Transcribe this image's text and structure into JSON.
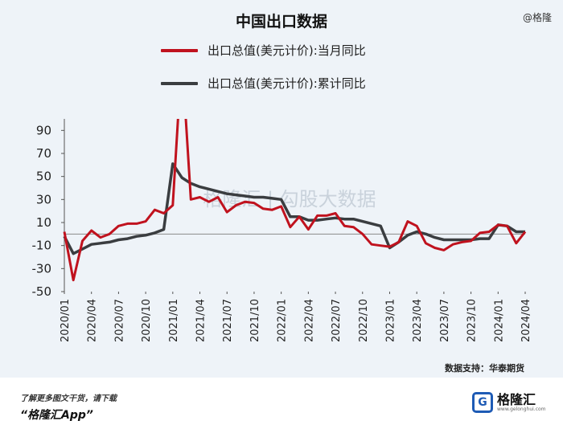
{
  "title": "中国出口数据",
  "corner_tag": "@格隆",
  "watermark": "格隆汇 | 勾股大数据",
  "source_note": "数据支持：华泰期货",
  "footer": {
    "download_text": "了解更多图文干货，请下载",
    "app_name": "“格隆汇App”",
    "brand_logo": "G",
    "brand_name": "格隆汇",
    "brand_url": "www.gelonghui.com"
  },
  "colors": {
    "monthly": "#c0121e",
    "cumulative": "#3a3d40",
    "background": "#eef3f8",
    "zero_line": "#8a8a8a"
  },
  "chart_data": {
    "type": "line",
    "title": "中国出口数据",
    "ylim": [
      -50,
      100
    ],
    "yticks": [
      90,
      70,
      50,
      30,
      10,
      -10,
      -30,
      -50
    ],
    "grid": false,
    "legend_placement": "top",
    "tick_labels": [
      "2020/01",
      "2020/04",
      "2020/07",
      "2020/10",
      "2021/01",
      "2021/04",
      "2021/07",
      "2021/10",
      "2022/01",
      "2022/04",
      "2022/07",
      "2022/10",
      "2023/01",
      "2023/04",
      "2023/07",
      "2023/10",
      "2024/01",
      "2024/04"
    ],
    "x": [
      "2020/01",
      "2020/02",
      "2020/03",
      "2020/04",
      "2020/05",
      "2020/06",
      "2020/07",
      "2020/08",
      "2020/09",
      "2020/10",
      "2020/11",
      "2020/12",
      "2021/01",
      "2021/02",
      "2021/03",
      "2021/04",
      "2021/05",
      "2021/06",
      "2021/07",
      "2021/08",
      "2021/09",
      "2021/10",
      "2021/11",
      "2021/12",
      "2022/01",
      "2022/02",
      "2022/03",
      "2022/04",
      "2022/05",
      "2022/06",
      "2022/07",
      "2022/08",
      "2022/09",
      "2022/10",
      "2022/11",
      "2022/12",
      "2023/01",
      "2023/02",
      "2023/03",
      "2023/04",
      "2023/05",
      "2023/06",
      "2023/07",
      "2023/08",
      "2023/09",
      "2023/10",
      "2023/11",
      "2023/12",
      "2024/01",
      "2024/02",
      "2024/03",
      "2024/04"
    ],
    "series": [
      {
        "name": "出口总值(美元计价):当月同比",
        "values": [
          2,
          -40,
          -6,
          3,
          -3,
          0,
          7,
          9,
          9,
          11,
          21,
          18,
          25,
          155,
          30,
          32,
          28,
          32,
          19,
          25,
          28,
          27,
          22,
          21,
          24,
          6,
          15,
          4,
          16,
          16,
          18,
          7,
          6,
          0,
          -9,
          -10,
          -11,
          -7,
          11,
          7,
          -8,
          -12,
          -14,
          -9,
          -7,
          -6,
          1,
          2,
          8,
          7,
          -8,
          2
        ],
        "color": "#c0121e"
      },
      {
        "name": "出口总值(美元计价):累计同比",
        "values": [
          -2,
          -17,
          -13,
          -9,
          -8,
          -7,
          -5,
          -4,
          -2,
          -1,
          1,
          4,
          61,
          49,
          44,
          41,
          39,
          37,
          35,
          34,
          33,
          32,
          32,
          31,
          30,
          15,
          15,
          12,
          12,
          13,
          14,
          13,
          13,
          11,
          9,
          7,
          -12,
          -7,
          -1,
          2,
          0,
          -3,
          -5,
          -5,
          -5,
          -5,
          -4,
          -4,
          8,
          7,
          2,
          2
        ],
        "color": "#3a3d40"
      }
    ]
  }
}
